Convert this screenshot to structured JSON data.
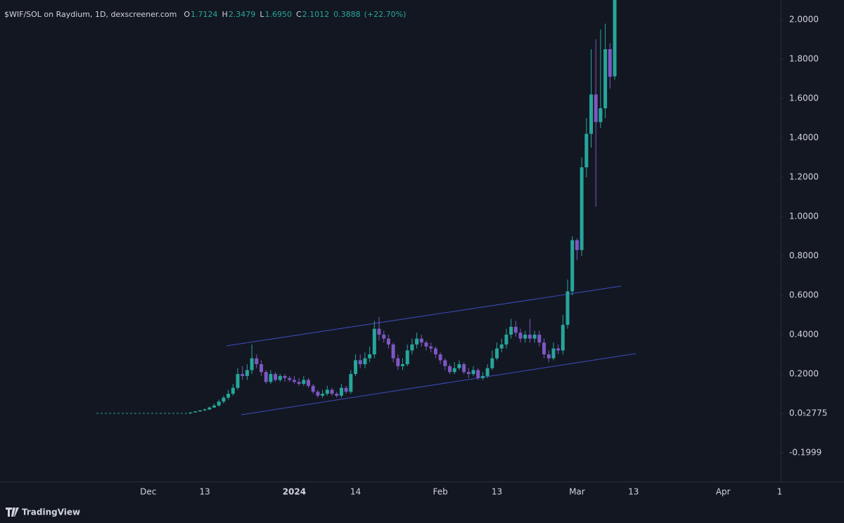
{
  "chart_data": {
    "type": "candlestick",
    "title": "$WIF/SOL on Raydium, 1D, dexscreener.com",
    "legend_keys": [
      "O",
      "H",
      "L",
      "C"
    ],
    "legend_values": [
      "1.7124",
      "2.3479",
      "1.6950",
      "2.1012"
    ],
    "change": 0.3888,
    "change_pct": "(+22.70%)",
    "watermark": "TradingView",
    "up_color": "#26a69a",
    "down_color": "#7e57c2",
    "categories": [
      null,
      null,
      null,
      null,
      null,
      null,
      null,
      null,
      null,
      null,
      null,
      "Dec",
      null,
      null,
      null,
      null,
      null,
      null,
      null,
      null,
      null,
      null,
      null,
      "13",
      null,
      null,
      null,
      null,
      null,
      null,
      null,
      null,
      null,
      null,
      null,
      null,
      null,
      null,
      null,
      null,
      null,
      null,
      "2024",
      null,
      null,
      null,
      null,
      null,
      null,
      null,
      null,
      null,
      null,
      null,
      null,
      "14",
      null,
      null,
      null,
      null,
      null,
      null,
      null,
      null,
      null,
      null,
      null,
      null,
      null,
      null,
      null,
      null,
      null,
      "Feb",
      null,
      null,
      null,
      null,
      null,
      null,
      null,
      null,
      null,
      null,
      null,
      "13",
      null,
      null,
      null,
      null,
      null,
      null,
      null,
      null,
      null,
      null,
      null,
      null,
      null,
      null,
      null,
      null,
      "Mar",
      null,
      null,
      null,
      null,
      null,
      null,
      null,
      null,
      null,
      null,
      null,
      "13",
      null,
      null,
      null,
      null,
      null,
      null,
      null,
      null,
      null,
      null,
      null,
      null,
      null,
      null,
      null,
      null,
      null,
      null,
      "Apr",
      null,
      null,
      null,
      null,
      null,
      null,
      null,
      null,
      null,
      null,
      null,
      "1"
    ],
    "open": [
      null,
      null,
      null,
      null,
      null,
      null,
      null,
      null,
      null,
      null,
      null,
      null,
      null,
      null,
      null,
      null,
      null,
      null,
      null,
      null,
      0.003,
      0.005,
      0.01,
      0.015,
      0.02,
      0.03,
      0.04,
      0.06,
      0.08,
      0.1,
      0.13,
      0.2,
      0.19,
      0.22,
      0.28,
      0.25,
      0.21,
      0.16,
      0.2,
      0.17,
      0.19,
      0.18,
      0.17,
      0.16,
      0.15,
      0.17,
      0.14,
      0.11,
      0.09,
      0.1,
      0.12,
      0.1,
      0.09,
      0.13,
      0.11,
      0.2,
      0.27,
      0.25,
      0.28,
      0.3,
      0.43,
      0.4,
      0.38,
      0.35,
      0.28,
      0.24,
      0.25,
      0.32,
      0.35,
      0.38,
      0.36,
      0.34,
      0.33,
      0.3,
      0.27,
      0.24,
      0.21,
      0.23,
      0.25,
      0.21,
      0.2,
      0.22,
      0.18,
      0.19,
      0.23,
      0.28,
      0.33,
      0.35,
      0.4,
      0.44,
      0.41,
      0.38,
      0.4,
      0.38,
      0.4,
      0.36,
      0.3,
      0.28,
      0.33,
      0.32,
      0.45,
      0.62,
      0.88,
      0.83,
      1.25,
      1.42,
      1.62,
      1.48,
      1.55,
      1.85,
      1.7124,
      null,
      null,
      null,
      null,
      null,
      null,
      null,
      null,
      null,
      null,
      null,
      null,
      null,
      null,
      null,
      null,
      null,
      null,
      null,
      null,
      null,
      null,
      null,
      null,
      null,
      null,
      null,
      null,
      null,
      null,
      null,
      null,
      null,
      null,
      null
    ],
    "high": [
      null,
      null,
      null,
      null,
      null,
      null,
      null,
      null,
      null,
      null,
      null,
      null,
      null,
      null,
      null,
      null,
      null,
      null,
      null,
      null,
      0.006,
      0.012,
      0.018,
      0.025,
      0.035,
      0.05,
      0.07,
      0.09,
      0.12,
      0.15,
      0.23,
      0.24,
      0.25,
      0.35,
      0.3,
      0.27,
      0.22,
      0.22,
      0.21,
      0.2,
      0.2,
      0.19,
      0.19,
      0.18,
      0.19,
      0.18,
      0.15,
      0.12,
      0.12,
      0.14,
      0.13,
      0.11,
      0.15,
      0.14,
      0.22,
      0.3,
      0.3,
      0.31,
      0.34,
      0.47,
      0.49,
      0.42,
      0.4,
      0.36,
      0.3,
      0.28,
      0.35,
      0.38,
      0.41,
      0.4,
      0.37,
      0.36,
      0.34,
      0.31,
      0.28,
      0.25,
      0.26,
      0.27,
      0.26,
      0.23,
      0.24,
      0.23,
      0.21,
      0.25,
      0.32,
      0.36,
      0.38,
      0.43,
      0.48,
      0.47,
      0.43,
      0.42,
      0.48,
      0.42,
      0.42,
      0.38,
      0.32,
      0.36,
      0.35,
      0.5,
      0.68,
      0.9,
      0.89,
      1.3,
      1.5,
      1.85,
      1.9,
      1.95,
      1.98,
      1.88,
      2.3479,
      null,
      null,
      null,
      null,
      null,
      null,
      null,
      null,
      null,
      null,
      null,
      null,
      null,
      null,
      null,
      null,
      null,
      null,
      null,
      null,
      null,
      null,
      null,
      null,
      null,
      null,
      null,
      null,
      null,
      null,
      null,
      null,
      null,
      null,
      null
    ],
    "low": [
      null,
      null,
      null,
      null,
      null,
      null,
      null,
      null,
      null,
      null,
      null,
      null,
      null,
      null,
      null,
      null,
      null,
      null,
      null,
      null,
      0.002,
      0.004,
      0.009,
      0.013,
      0.018,
      0.028,
      0.035,
      0.05,
      0.07,
      0.09,
      0.12,
      0.17,
      0.17,
      0.2,
      0.23,
      0.19,
      0.15,
      0.15,
      0.16,
      0.16,
      0.16,
      0.16,
      0.15,
      0.14,
      0.14,
      0.13,
      0.1,
      0.08,
      0.08,
      0.09,
      0.09,
      0.08,
      0.08,
      0.1,
      0.1,
      0.19,
      0.23,
      0.23,
      0.26,
      0.28,
      0.37,
      0.36,
      0.33,
      0.26,
      0.22,
      0.22,
      0.24,
      0.3,
      0.33,
      0.34,
      0.32,
      0.31,
      0.28,
      0.25,
      0.22,
      0.2,
      0.2,
      0.22,
      0.2,
      0.18,
      0.19,
      0.17,
      0.17,
      0.18,
      0.22,
      0.27,
      0.31,
      0.33,
      0.38,
      0.39,
      0.36,
      0.36,
      0.36,
      0.36,
      0.34,
      0.28,
      0.26,
      0.27,
      0.3,
      0.3,
      0.43,
      0.6,
      0.78,
      0.8,
      1.2,
      1.35,
      1.05,
      1.45,
      1.5,
      1.65,
      1.695,
      null,
      null,
      null,
      null,
      null,
      null,
      null,
      null,
      null,
      null,
      null,
      null,
      null,
      null,
      null,
      null,
      null,
      null,
      null,
      null,
      null,
      null,
      null,
      null,
      null,
      null,
      null,
      null,
      null,
      null,
      null,
      null,
      null,
      null,
      null
    ],
    "close": [
      null,
      null,
      null,
      null,
      null,
      null,
      null,
      null,
      null,
      null,
      null,
      null,
      null,
      null,
      null,
      null,
      null,
      null,
      null,
      null,
      0.005,
      0.01,
      0.015,
      0.02,
      0.03,
      0.04,
      0.06,
      0.08,
      0.1,
      0.13,
      0.2,
      0.19,
      0.22,
      0.28,
      0.25,
      0.21,
      0.16,
      0.2,
      0.17,
      0.19,
      0.18,
      0.17,
      0.16,
      0.15,
      0.17,
      0.14,
      0.11,
      0.09,
      0.1,
      0.12,
      0.1,
      0.09,
      0.13,
      0.11,
      0.2,
      0.27,
      0.25,
      0.28,
      0.3,
      0.43,
      0.4,
      0.38,
      0.35,
      0.28,
      0.24,
      0.25,
      0.32,
      0.35,
      0.38,
      0.36,
      0.34,
      0.33,
      0.3,
      0.27,
      0.24,
      0.21,
      0.23,
      0.25,
      0.21,
      0.2,
      0.22,
      0.18,
      0.19,
      0.23,
      0.28,
      0.33,
      0.35,
      0.4,
      0.44,
      0.41,
      0.38,
      0.4,
      0.38,
      0.4,
      0.36,
      0.3,
      0.28,
      0.33,
      0.32,
      0.45,
      0.62,
      0.88,
      0.83,
      1.25,
      1.42,
      1.62,
      1.48,
      1.55,
      1.85,
      1.71,
      2.1012,
      null,
      null,
      null,
      null,
      null,
      null,
      null,
      null,
      null,
      null,
      null,
      null,
      null,
      null,
      null,
      null,
      null,
      null,
      null,
      null,
      null,
      null,
      null,
      null,
      null,
      null,
      null,
      null,
      null,
      null,
      null,
      null,
      null,
      null,
      null
    ],
    "ylim": [
      -0.346,
      2.1
    ],
    "yticks": [
      {
        "value": 2.0,
        "label": "2.0000"
      },
      {
        "value": 1.8,
        "label": "1.8000"
      },
      {
        "value": 1.6,
        "label": "1.6000"
      },
      {
        "value": 1.4,
        "label": "1.4000"
      },
      {
        "value": 1.2,
        "label": "1.2000"
      },
      {
        "value": 1.0,
        "label": "1.0000"
      },
      {
        "value": 0.8,
        "label": "0.8000"
      },
      {
        "value": 0.6,
        "label": "0.6000"
      },
      {
        "value": 0.4,
        "label": "0.4000"
      },
      {
        "value": 0.2,
        "label": "0.2000"
      },
      {
        "value": 2.775e-06,
        "label": "0.0₅2775"
      },
      -0.1999
    ],
    "bold_category": "2024"
  }
}
